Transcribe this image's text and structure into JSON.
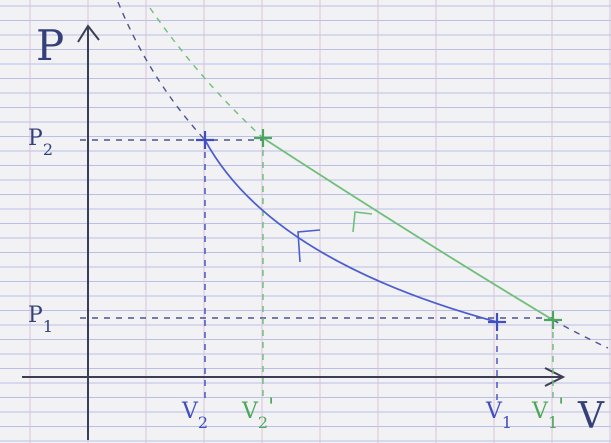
{
  "axes": {
    "y_label": "P",
    "x_label": "V"
  },
  "labels": [
    {
      "main": "P",
      "sub": "2"
    },
    {
      "main": "P",
      "sub": "1"
    },
    {
      "main": "V",
      "sub": "2"
    },
    {
      "main": "V",
      "sub": "2",
      "prime": "'"
    },
    {
      "main": "V",
      "sub": "1"
    },
    {
      "main": "V",
      "sub": "1",
      "prime": "'"
    }
  ]
}
